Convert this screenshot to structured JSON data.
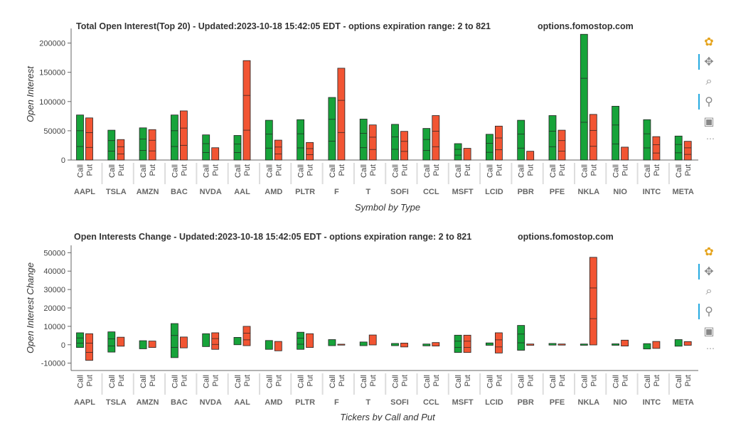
{
  "watermark": "options.fomostop.com",
  "chart_data": [
    {
      "type": "bar",
      "title": "Total Open Interest(Top 20) - Updated:2023-10-18 15:42:05 EDT - options expiration range: 2 to 821",
      "xlabel": "Symbol by Type",
      "ylabel": "Open Interest",
      "ylim": [
        0,
        225000
      ],
      "yticks": [
        0,
        50000,
        100000,
        150000,
        200000
      ],
      "ytick_labels": [
        "0",
        "50000",
        "100000",
        "150000",
        "200000"
      ],
      "types": [
        "Call",
        "Put"
      ],
      "categories": [
        "AAPL",
        "TSLA",
        "AMZN",
        "BAC",
        "NVDA",
        "AAL",
        "AMD",
        "PLTR",
        "F",
        "T",
        "SOFI",
        "CCL",
        "MSFT",
        "LCID",
        "PBR",
        "PFE",
        "NKLA",
        "NIO",
        "INTC",
        "META"
      ],
      "series": [
        {
          "name": "Call",
          "color": "#17a33a",
          "values": [
            [
              0,
              77000
            ],
            [
              0,
              51000
            ],
            [
              0,
              55000
            ],
            [
              0,
              77000
            ],
            [
              0,
              43000
            ],
            [
              0,
              42000
            ],
            [
              0,
              68000
            ],
            [
              0,
              69000
            ],
            [
              0,
              107000
            ],
            [
              0,
              70000
            ],
            [
              0,
              61000
            ],
            [
              0,
              54000
            ],
            [
              0,
              28000
            ],
            [
              0,
              44000
            ],
            [
              0,
              68000
            ],
            [
              0,
              76000
            ],
            [
              0,
              215000
            ],
            [
              0,
              92000
            ],
            [
              0,
              69000
            ],
            [
              0,
              41000
            ]
          ]
        },
        {
          "name": "Put",
          "color": "#f25533",
          "values": [
            [
              0,
              72000
            ],
            [
              0,
              35000
            ],
            [
              0,
              52000
            ],
            [
              0,
              84000
            ],
            [
              0,
              21000
            ],
            [
              0,
              170000
            ],
            [
              0,
              34000
            ],
            [
              0,
              30000
            ],
            [
              0,
              157000
            ],
            [
              0,
              60000
            ],
            [
              0,
              49000
            ],
            [
              0,
              76000
            ],
            [
              0,
              20000
            ],
            [
              0,
              58000
            ],
            [
              0,
              15000
            ],
            [
              0,
              51000
            ],
            [
              0,
              78000
            ],
            [
              0,
              22000
            ],
            [
              0,
              40000
            ],
            [
              0,
              32000
            ]
          ]
        }
      ]
    },
    {
      "type": "bar",
      "title": "Open Interests Change - Updated:2023-10-18 15:42:05 EDT - options expiration range: 2 to 821",
      "xlabel": "Tickers by Call and Put",
      "ylabel": "Open Interest Change",
      "ylim": [
        -14000,
        54000
      ],
      "yticks": [
        -10000,
        0,
        10000,
        20000,
        30000,
        40000,
        50000
      ],
      "ytick_labels": [
        "-10000",
        "0",
        "10000",
        "20000",
        "30000",
        "40000",
        "50000"
      ],
      "types": [
        "Call",
        "Put"
      ],
      "categories": [
        "AAPL",
        "TSLA",
        "AMZN",
        "BAC",
        "NVDA",
        "AAL",
        "AMD",
        "PLTR",
        "F",
        "T",
        "SOFI",
        "CCL",
        "MSFT",
        "LCID",
        "PBR",
        "PFE",
        "NKLA",
        "NIO",
        "INTC",
        "META"
      ],
      "series": [
        {
          "name": "Call",
          "color": "#17a33a",
          "values": [
            [
              -1500,
              6500
            ],
            [
              -4000,
              7000
            ],
            [
              -2200,
              2200
            ],
            [
              -7000,
              11500
            ],
            [
              -1000,
              6000
            ],
            [
              0,
              4000
            ],
            [
              -2500,
              2300
            ],
            [
              -2500,
              6800
            ],
            [
              -500,
              2800
            ],
            [
              -500,
              1500
            ],
            [
              -500,
              700
            ],
            [
              -600,
              400
            ],
            [
              -4200,
              5200
            ],
            [
              -300,
              1000
            ],
            [
              -3000,
              10500
            ],
            [
              -200,
              700
            ],
            [
              -300,
              400
            ],
            [
              -300,
              500
            ],
            [
              -2300,
              600
            ],
            [
              -800,
              2800
            ]
          ]
        },
        {
          "name": "Put",
          "color": "#f25533",
          "values": [
            [
              -8500,
              6000
            ],
            [
              -800,
              4100
            ],
            [
              -1500,
              2000
            ],
            [
              -1700,
              4200
            ],
            [
              -2500,
              6500
            ],
            [
              -500,
              10000
            ],
            [
              -3300,
              1800
            ],
            [
              -1500,
              6000
            ],
            [
              -200,
              300
            ],
            [
              -100,
              5300
            ],
            [
              -1200,
              900
            ],
            [
              -700,
              1200
            ],
            [
              -4200,
              5200
            ],
            [
              -4500,
              6500
            ],
            [
              -300,
              400
            ],
            [
              -200,
              400
            ],
            [
              -100,
              47500
            ],
            [
              -700,
              2500
            ],
            [
              -2000,
              1800
            ],
            [
              -300,
              1700
            ]
          ]
        }
      ]
    }
  ]
}
